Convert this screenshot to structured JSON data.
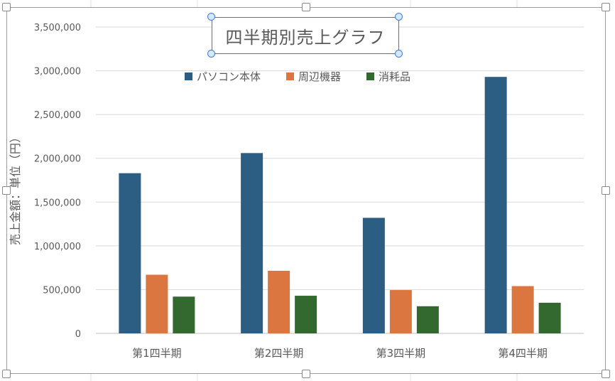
{
  "chart_data": {
    "type": "bar",
    "title": "四半期別売上グラフ",
    "ylabel": "売上金額：単位（円）",
    "xlabel": "",
    "categories": [
      "第1四半期",
      "第2四半期",
      "第3四半期",
      "第4四半期"
    ],
    "series": [
      {
        "name": "パソコン本体",
        "color": "#2c5d82",
        "values": [
          1830000,
          2060000,
          1320000,
          2930000
        ]
      },
      {
        "name": "周辺機器",
        "color": "#dc7641",
        "values": [
          670000,
          715000,
          495000,
          540000
        ]
      },
      {
        "name": "消耗品",
        "color": "#33692e",
        "values": [
          420000,
          430000,
          310000,
          350000
        ]
      }
    ],
    "ylim": [
      0,
      3500000
    ],
    "yticks": [
      "0",
      "500,000",
      "1,000,000",
      "1,500,000",
      "2,000,000",
      "2,500,000",
      "3,000,000",
      "3,500,000"
    ],
    "legend_position": "top",
    "grid": true
  }
}
